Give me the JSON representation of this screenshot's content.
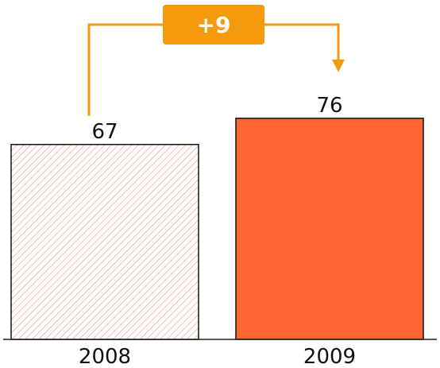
{
  "chart_data": {
    "type": "bar",
    "categories": [
      "2008",
      "2009"
    ],
    "values": [
      67,
      76
    ],
    "value_labels": [
      "67",
      "76"
    ],
    "ylim": [
      0,
      100
    ],
    "title": "",
    "xlabel": "",
    "ylabel": "",
    "grid": false,
    "annotation": {
      "label": "+9",
      "from_category": "2008",
      "to_category": "2009",
      "color": "#F59A0C"
    },
    "bar_styles": [
      {
        "fill": "hatched",
        "color": "#F26A4B"
      },
      {
        "fill": "solid",
        "color": "#FF6633"
      }
    ]
  }
}
